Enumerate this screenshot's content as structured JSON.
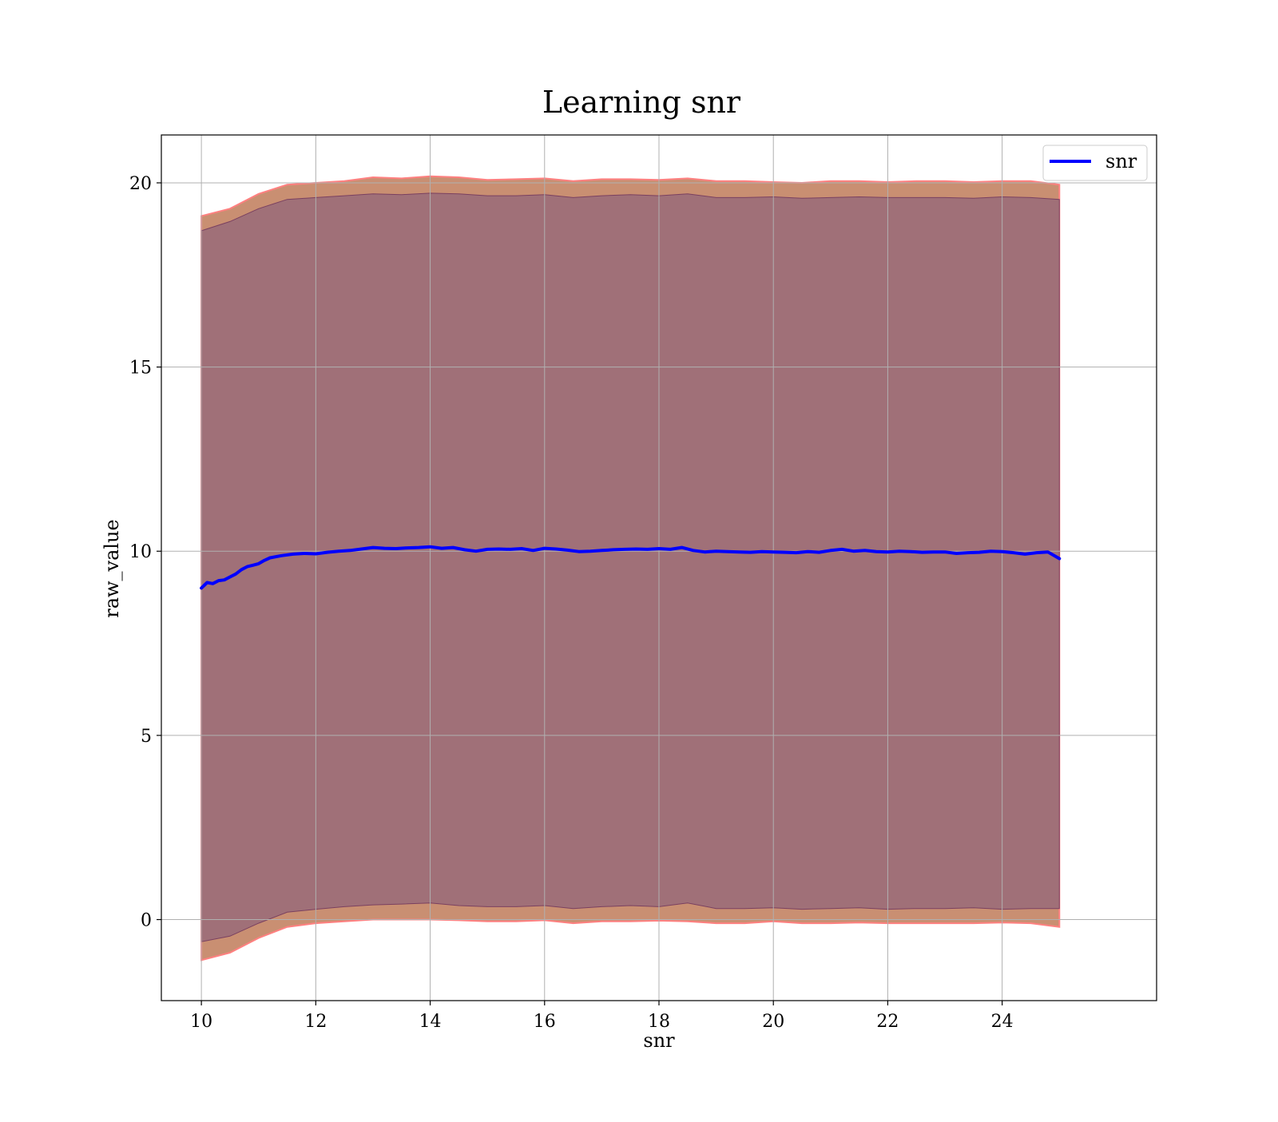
{
  "chart_data": {
    "type": "line",
    "title": "Learning snr",
    "xlabel": "snr",
    "ylabel": "raw_value",
    "xlim": [
      9.3,
      26.7
    ],
    "ylim": [
      -2.2,
      21.3
    ],
    "x_ticks": [
      10,
      12,
      14,
      16,
      18,
      20,
      22,
      24
    ],
    "x_tick_labels": [
      "10",
      "12",
      "14",
      "16",
      "18",
      "20",
      "22",
      "24"
    ],
    "y_ticks": [
      0,
      5,
      10,
      15,
      20
    ],
    "y_tick_labels": [
      "0",
      "5",
      "10",
      "15",
      "20"
    ],
    "grid": true,
    "legend": {
      "position": "top-right",
      "entries": [
        "snr"
      ]
    },
    "colors": {
      "line": "#0000ff",
      "outer_band": "#c98f72",
      "outer_band_edge": "#ff8080",
      "inner_band": "#a07078",
      "inner_band_edge": "#7a4060",
      "grid": "#b0b0b0"
    },
    "series": [
      {
        "name": "snr",
        "x": [
          10.0,
          10.1,
          10.2,
          10.3,
          10.4,
          10.5,
          10.6,
          10.7,
          10.8,
          10.9,
          11.0,
          11.1,
          11.2,
          11.4,
          11.6,
          11.8,
          12.0,
          12.2,
          12.4,
          12.6,
          12.8,
          13.0,
          13.2,
          13.4,
          13.6,
          13.8,
          14.0,
          14.2,
          14.4,
          14.6,
          14.8,
          15.0,
          15.2,
          15.4,
          15.6,
          15.8,
          16.0,
          16.2,
          16.4,
          16.6,
          16.8,
          17.0,
          17.2,
          17.4,
          17.6,
          17.8,
          18.0,
          18.2,
          18.4,
          18.6,
          18.8,
          19.0,
          19.2,
          19.4,
          19.6,
          19.8,
          20.0,
          20.2,
          20.4,
          20.6,
          20.8,
          21.0,
          21.2,
          21.4,
          21.6,
          21.8,
          22.0,
          22.2,
          22.4,
          22.6,
          22.8,
          23.0,
          23.2,
          23.4,
          23.6,
          23.8,
          24.0,
          24.2,
          24.4,
          24.6,
          24.8,
          25.0
        ],
        "values": [
          9.0,
          9.15,
          9.12,
          9.2,
          9.22,
          9.3,
          9.38,
          9.5,
          9.58,
          9.62,
          9.66,
          9.75,
          9.82,
          9.88,
          9.92,
          9.94,
          9.93,
          9.97,
          10.0,
          10.02,
          10.06,
          10.1,
          10.08,
          10.07,
          10.09,
          10.1,
          10.12,
          10.08,
          10.1,
          10.04,
          10.0,
          10.05,
          10.06,
          10.05,
          10.07,
          10.02,
          10.08,
          10.06,
          10.03,
          9.99,
          10.0,
          10.02,
          10.04,
          10.05,
          10.06,
          10.05,
          10.07,
          10.05,
          10.1,
          10.02,
          9.98,
          10.0,
          9.99,
          9.98,
          9.97,
          9.99,
          9.98,
          9.97,
          9.96,
          9.99,
          9.97,
          10.02,
          10.05,
          10.0,
          10.02,
          9.99,
          9.98,
          10.0,
          9.99,
          9.97,
          9.98,
          9.98,
          9.94,
          9.96,
          9.97,
          10.0,
          9.99,
          9.96,
          9.92,
          9.96,
          9.98,
          9.8
        ]
      }
    ],
    "bands": [
      {
        "x": [
          10.0,
          10.5,
          11.0,
          11.5,
          12.0,
          12.5,
          13.0,
          13.5,
          14.0,
          14.5,
          15.0,
          15.5,
          16.0,
          16.5,
          17.0,
          17.5,
          18.0,
          18.5,
          19.0,
          19.5,
          20.0,
          20.5,
          21.0,
          21.5,
          22.0,
          22.5,
          23.0,
          23.5,
          24.0,
          24.5,
          25.0
        ],
        "lower": [
          -1.1,
          -0.9,
          -0.5,
          -0.2,
          -0.1,
          -0.05,
          0.0,
          0.0,
          0.0,
          -0.02,
          -0.05,
          -0.05,
          -0.02,
          -0.1,
          -0.05,
          -0.05,
          -0.03,
          -0.05,
          -0.1,
          -0.1,
          -0.05,
          -0.1,
          -0.1,
          -0.08,
          -0.1,
          -0.1,
          -0.1,
          -0.1,
          -0.08,
          -0.1,
          -0.2
        ],
        "upper": [
          19.1,
          19.3,
          19.7,
          19.95,
          20.0,
          20.05,
          20.15,
          20.12,
          20.18,
          20.15,
          20.08,
          20.1,
          20.12,
          20.05,
          20.1,
          20.1,
          20.08,
          20.12,
          20.05,
          20.05,
          20.02,
          20.0,
          20.05,
          20.05,
          20.02,
          20.05,
          20.05,
          20.02,
          20.05,
          20.05,
          19.95
        ]
      },
      {
        "x": [
          10.0,
          10.5,
          11.0,
          11.5,
          12.0,
          12.5,
          13.0,
          13.5,
          14.0,
          14.5,
          15.0,
          15.5,
          16.0,
          16.5,
          17.0,
          17.5,
          18.0,
          18.5,
          19.0,
          19.5,
          20.0,
          20.5,
          21.0,
          21.5,
          22.0,
          22.5,
          23.0,
          23.5,
          24.0,
          24.5,
          25.0
        ],
        "lower": [
          -0.6,
          -0.45,
          -0.1,
          0.2,
          0.28,
          0.35,
          0.4,
          0.42,
          0.45,
          0.38,
          0.35,
          0.35,
          0.38,
          0.3,
          0.35,
          0.38,
          0.35,
          0.45,
          0.3,
          0.3,
          0.32,
          0.28,
          0.3,
          0.32,
          0.28,
          0.3,
          0.3,
          0.32,
          0.28,
          0.3,
          0.3
        ],
        "upper": [
          18.7,
          18.95,
          19.3,
          19.55,
          19.6,
          19.65,
          19.7,
          19.68,
          19.72,
          19.7,
          19.65,
          19.65,
          19.68,
          19.6,
          19.65,
          19.68,
          19.65,
          19.7,
          19.6,
          19.6,
          19.62,
          19.58,
          19.6,
          19.62,
          19.6,
          19.6,
          19.6,
          19.58,
          19.62,
          19.6,
          19.55
        ]
      }
    ]
  }
}
